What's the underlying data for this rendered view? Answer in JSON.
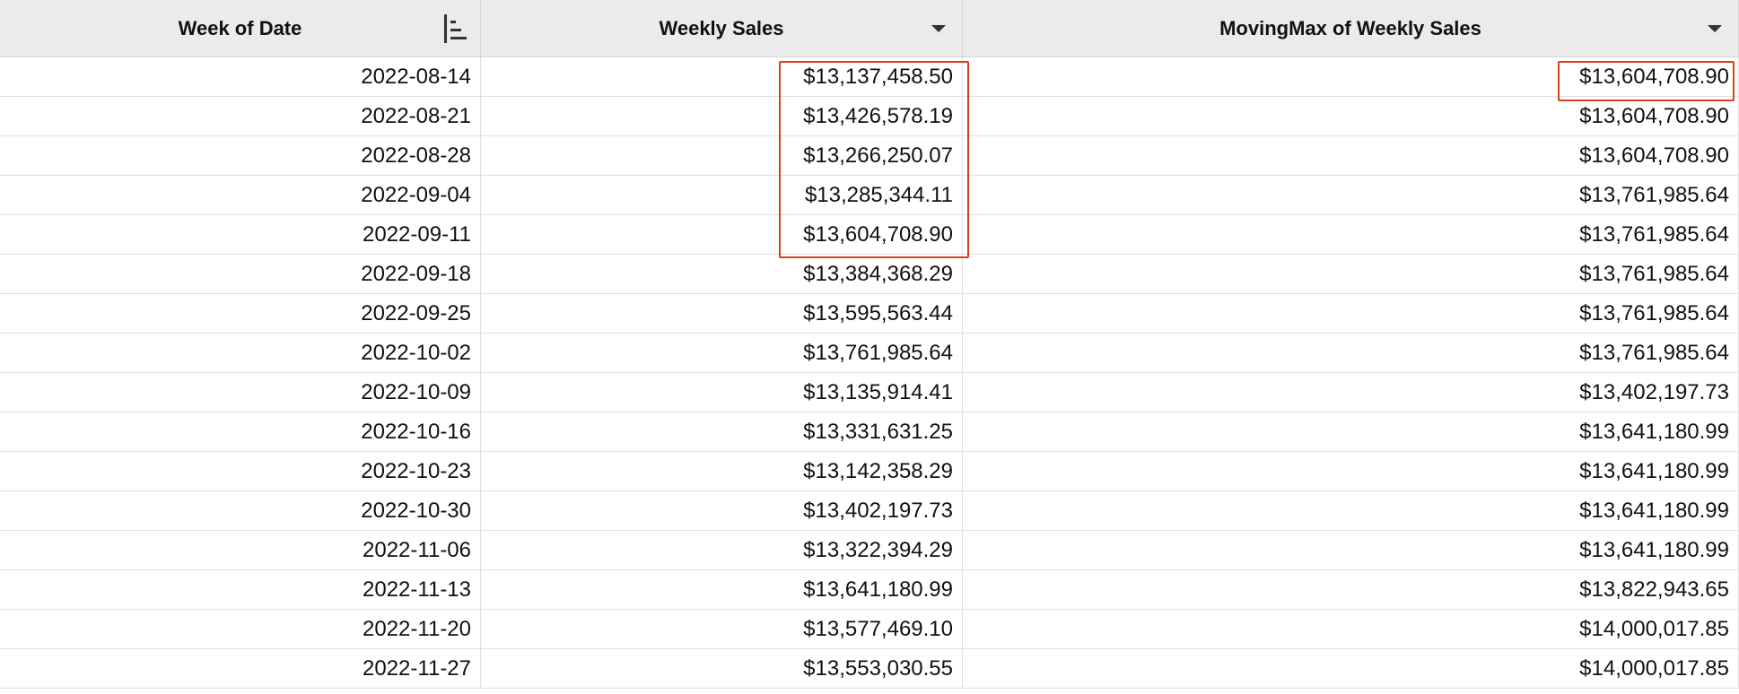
{
  "table": {
    "headers": [
      "Week of Date",
      "Weekly Sales",
      "MovingMax of Weekly Sales"
    ],
    "rows": [
      [
        "2022-08-14",
        "$13,137,458.50",
        "$13,604,708.90"
      ],
      [
        "2022-08-21",
        "$13,426,578.19",
        "$13,604,708.90"
      ],
      [
        "2022-08-28",
        "$13,266,250.07",
        "$13,604,708.90"
      ],
      [
        "2022-09-04",
        "$13,285,344.11",
        "$13,761,985.64"
      ],
      [
        "2022-09-11",
        "$13,604,708.90",
        "$13,761,985.64"
      ],
      [
        "2022-09-18",
        "$13,384,368.29",
        "$13,761,985.64"
      ],
      [
        "2022-09-25",
        "$13,595,563.44",
        "$13,761,985.64"
      ],
      [
        "2022-10-02",
        "$13,761,985.64",
        "$13,761,985.64"
      ],
      [
        "2022-10-09",
        "$13,135,914.41",
        "$13,402,197.73"
      ],
      [
        "2022-10-16",
        "$13,331,631.25",
        "$13,641,180.99"
      ],
      [
        "2022-10-23",
        "$13,142,358.29",
        "$13,641,180.99"
      ],
      [
        "2022-10-30",
        "$13,402,197.73",
        "$13,641,180.99"
      ],
      [
        "2022-11-06",
        "$13,322,394.29",
        "$13,641,180.99"
      ],
      [
        "2022-11-13",
        "$13,641,180.99",
        "$13,822,943.65"
      ],
      [
        "2022-11-20",
        "$13,577,469.10",
        "$14,000,017.85"
      ],
      [
        "2022-11-27",
        "$13,553,030.55",
        "$14,000,017.85"
      ]
    ]
  }
}
